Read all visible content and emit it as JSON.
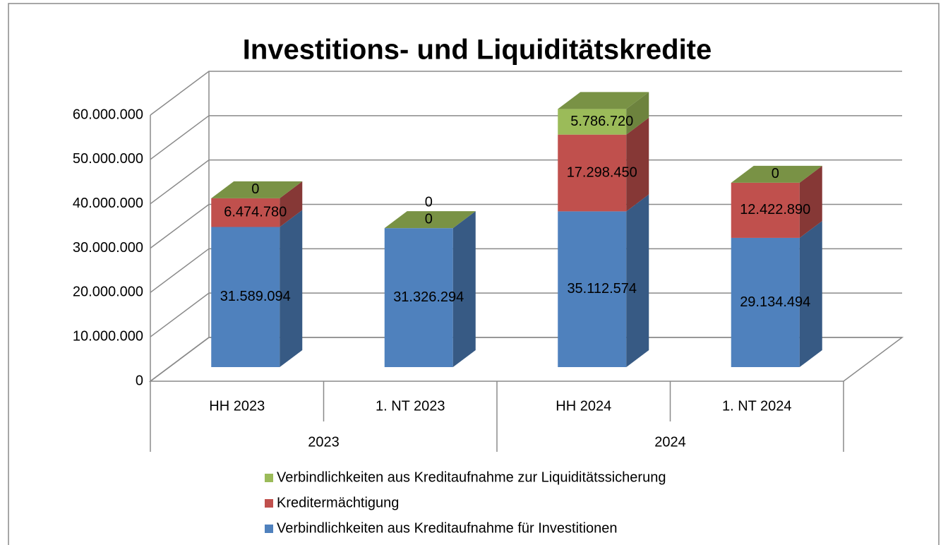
{
  "chart_data": {
    "type": "bar3d_stacked",
    "title": "Investitions- und Liquiditätskredite",
    "categories": [
      "HH 2023",
      "1. NT 2023",
      "HH 2024",
      "1. NT 2024"
    ],
    "groups": [
      {
        "label": "2023",
        "span": 2
      },
      {
        "label": "2024",
        "span": 2
      }
    ],
    "series": [
      {
        "name": "Verbindlichkeiten aus Kreditaufnahme für Investitionen",
        "color": "#4f81bd",
        "values": [
          31589094,
          31326294,
          35112574,
          29134494
        ],
        "value_labels": [
          "31.589.094",
          "31.326.294",
          "35.112.574",
          "29.134.494"
        ]
      },
      {
        "name": "Kreditermächtigung",
        "color": "#c0504d",
        "values": [
          6474780,
          0,
          17298450,
          12422890
        ],
        "value_labels": [
          "6.474.780",
          "0",
          "17.298.450",
          "12.422.890"
        ]
      },
      {
        "name": "Verbindlichkeiten aus Kreditaufnahme zur Liquiditätssicherung",
        "color": "#9bbb59",
        "values": [
          0,
          0,
          5786720,
          0
        ],
        "value_labels": [
          "0",
          "0",
          "5.786.720",
          "0"
        ]
      }
    ],
    "ylim": [
      0,
      60000000
    ],
    "yticks": [
      0,
      {
        "value": 10000000,
        "label": "10.000.000"
      },
      {
        "value": 20000000,
        "label": "20.000.000"
      },
      {
        "value": 30000000,
        "label": "30.000.000"
      },
      {
        "value": 40000000,
        "label": "40.000.000"
      },
      {
        "value": 50000000,
        "label": "50.000.000"
      },
      {
        "value": 60000000,
        "label": "60.000.000"
      }
    ],
    "grid": true,
    "legend": "bottom"
  }
}
